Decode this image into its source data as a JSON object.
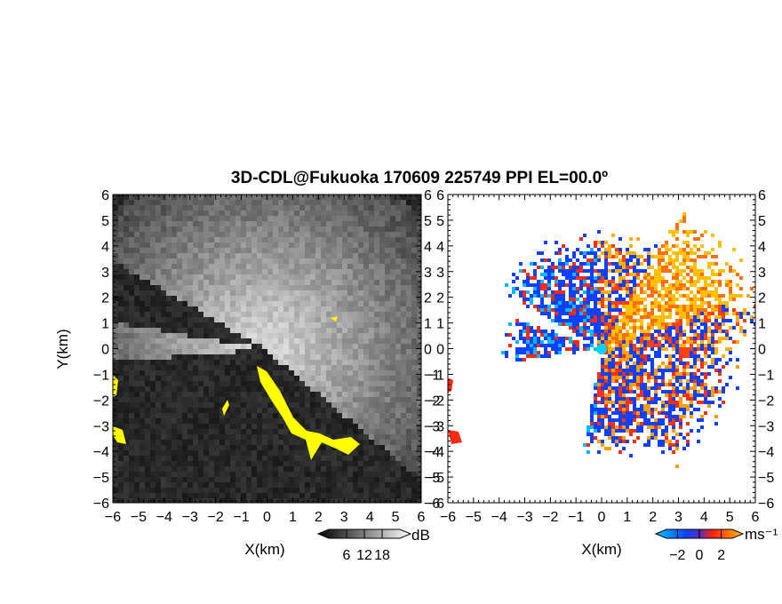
{
  "chart_data": {
    "type": "heatmap",
    "title": "3D-CDL@Fukuoka 170609 225749 PPI EL=00.0º",
    "panels": [
      {
        "name": "reflectivity",
        "xlabel": "X(km)",
        "ylabel": "Y(km)",
        "xlim": [
          -6,
          6
        ],
        "ylim": [
          -6,
          6
        ],
        "ticks": [
          "−6",
          "−5",
          "−4",
          "−3",
          "−2",
          "−1",
          "0",
          "1",
          "2",
          "3",
          "4",
          "5",
          "6"
        ],
        "colorbar": {
          "unit": "dB",
          "ticks": [
            "6",
            "12",
            "18"
          ],
          "range": [
            0,
            24
          ],
          "colors": [
            "#000000",
            "#ffffff"
          ]
        },
        "highlight_color": "#ffff00"
      },
      {
        "name": "doppler-velocity",
        "xlabel": "X(km)",
        "xlim": [
          -6,
          6
        ],
        "ylim": [
          -6,
          6
        ],
        "ticks": [
          "−6",
          "−5",
          "−4",
          "−3",
          "−2",
          "−1",
          "0",
          "1",
          "2",
          "3",
          "4",
          "5",
          "6"
        ],
        "colorbar": {
          "unit": "ms⁻¹",
          "ticks": [
            "−2",
            "0",
            "2"
          ],
          "range": [
            -3,
            3
          ],
          "colors": [
            "#00c8ff",
            "#1040ff",
            "#ff2010",
            "#ffc000"
          ]
        }
      }
    ]
  }
}
